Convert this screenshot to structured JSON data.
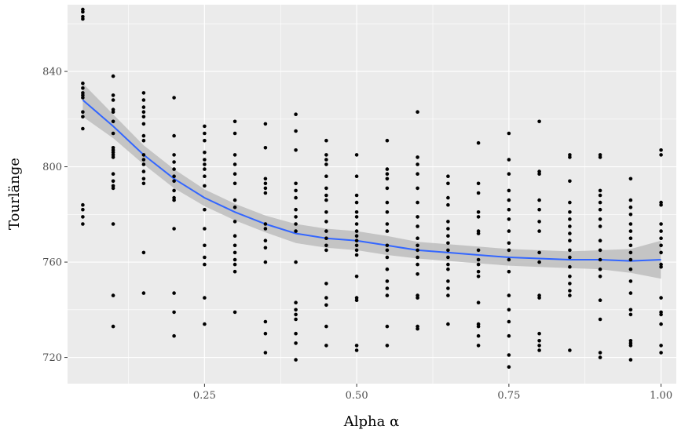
{
  "chart_data": {
    "type": "scatter",
    "title": "",
    "xlabel": "Alpha α",
    "ylabel": "Tourlänge",
    "xlim": [
      0.025,
      1.025
    ],
    "ylim": [
      709,
      868
    ],
    "x_ticks": [
      0.25,
      0.5,
      0.75,
      1.0
    ],
    "x_tick_labels": [
      "0.25",
      "0.50",
      "0.75",
      "1.00"
    ],
    "y_ticks": [
      720,
      760,
      800,
      840
    ],
    "y_tick_labels": [
      "720",
      "760",
      "800",
      "840"
    ],
    "grid": true,
    "legend": "none",
    "colors": {
      "panel_background": "#ebebeb",
      "grid": "#ffffff",
      "points": "#000000",
      "smooth_line": "#3366ff",
      "confidence_band": "#bdbdbd"
    },
    "points": {
      "0.05": [
        866,
        865,
        863,
        862,
        835,
        833,
        831,
        830,
        829,
        823,
        821,
        816,
        784,
        782,
        779,
        776
      ],
      "0.10": [
        838,
        830,
        828,
        824,
        823,
        819,
        814,
        808,
        807,
        806,
        805,
        804,
        797,
        794,
        792,
        791,
        776,
        746,
        733
      ],
      "0.15": [
        831,
        828,
        825,
        823,
        821,
        818,
        813,
        811,
        805,
        803,
        801,
        798,
        795,
        793,
        764,
        747
      ],
      "0.20": [
        829,
        813,
        805,
        802,
        799,
        796,
        794,
        790,
        787,
        786,
        774,
        747,
        739,
        729
      ],
      "0.25": [
        817,
        814,
        811,
        806,
        803,
        801,
        799,
        796,
        792,
        782,
        774,
        767,
        762,
        759,
        745,
        734
      ],
      "0.30": [
        819,
        814,
        805,
        801,
        797,
        793,
        786,
        783,
        777,
        771,
        767,
        764,
        761,
        759,
        756,
        739
      ],
      "0.35": [
        818,
        808,
        795,
        793,
        791,
        789,
        776,
        774,
        769,
        766,
        760,
        735,
        730,
        722
      ],
      "0.40": [
        822,
        815,
        807,
        793,
        790,
        787,
        782,
        779,
        776,
        773,
        760,
        743,
        740,
        738,
        736,
        730,
        726,
        719
      ],
      "0.45": [
        811,
        805,
        803,
        801,
        796,
        791,
        788,
        786,
        781,
        777,
        773,
        770,
        767,
        765,
        751,
        745,
        742,
        733,
        725
      ],
      "0.50": [
        805,
        796,
        788,
        785,
        781,
        779,
        776,
        773,
        771,
        769,
        767,
        765,
        763,
        754,
        745,
        744,
        725,
        723
      ],
      "0.55": [
        811,
        799,
        797,
        795,
        791,
        785,
        781,
        776,
        773,
        767,
        765,
        762,
        757,
        752,
        749,
        746,
        733,
        725
      ],
      "0.60": [
        823,
        804,
        801,
        797,
        791,
        785,
        779,
        775,
        770,
        767,
        765,
        762,
        759,
        755,
        746,
        745,
        733,
        732
      ],
      "0.65": [
        796,
        793,
        787,
        784,
        777,
        774,
        771,
        768,
        765,
        762,
        759,
        757,
        752,
        749,
        746,
        734
      ],
      "0.70": [
        810,
        793,
        789,
        781,
        779,
        773,
        772,
        765,
        761,
        759,
        756,
        754,
        743,
        734,
        733,
        729,
        725
      ],
      "0.75": [
        814,
        803,
        797,
        790,
        786,
        782,
        778,
        773,
        768,
        765,
        761,
        756,
        746,
        740,
        735,
        729,
        721,
        716
      ],
      "0.80": [
        819,
        798,
        797,
        786,
        782,
        777,
        773,
        764,
        760,
        746,
        745,
        730,
        727,
        725,
        723
      ],
      "0.85": [
        805,
        804,
        794,
        785,
        781,
        778,
        775,
        772,
        769,
        765,
        762,
        758,
        754,
        751,
        748,
        746,
        723
      ],
      "0.90": [
        805,
        804,
        790,
        788,
        785,
        782,
        778,
        775,
        769,
        765,
        761,
        757,
        754,
        744,
        736,
        722,
        720
      ],
      "0.95": [
        795,
        786,
        783,
        780,
        776,
        773,
        770,
        767,
        764,
        761,
        757,
        752,
        747,
        740,
        738,
        727,
        726,
        725,
        719
      ],
      "1.00": [
        807,
        805,
        785,
        784,
        776,
        773,
        770,
        767,
        764,
        759,
        758,
        745,
        739,
        738,
        734,
        725,
        722
      ]
    },
    "smooth": {
      "x": [
        0.05,
        0.1,
        0.15,
        0.2,
        0.25,
        0.3,
        0.35,
        0.4,
        0.45,
        0.5,
        0.55,
        0.6,
        0.65,
        0.7,
        0.75,
        0.8,
        0.85,
        0.9,
        0.95,
        1.0
      ],
      "y": [
        828,
        817,
        805,
        795,
        787,
        781,
        776,
        772,
        770,
        769,
        767,
        765,
        764,
        763,
        762,
        761.5,
        761,
        761,
        760.5,
        761
      ],
      "lower": [
        821,
        812,
        801,
        791,
        783.5,
        777.5,
        772.5,
        768,
        766,
        765,
        763,
        761.5,
        760.5,
        759.5,
        758.5,
        758,
        757.5,
        757,
        755.5,
        753
      ],
      "upper": [
        835,
        822,
        809,
        799,
        790.5,
        784.5,
        779.5,
        776,
        774,
        773,
        771,
        768.5,
        767.5,
        766.5,
        765.5,
        765,
        764.5,
        765,
        765.5,
        769
      ]
    }
  }
}
